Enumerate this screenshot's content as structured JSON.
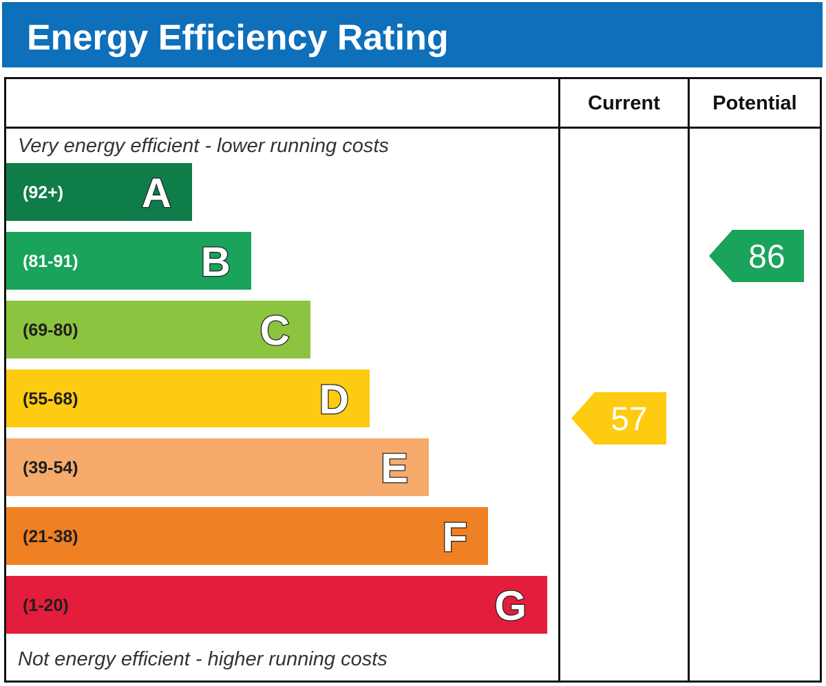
{
  "title": "Energy Efficiency Rating",
  "columns": {
    "current": "Current",
    "potential": "Potential"
  },
  "top_caption": "Very energy efficient - lower running costs",
  "bottom_caption": "Not energy efficient - higher running costs",
  "chart_data": {
    "type": "bar",
    "bands": [
      {
        "letter": "A",
        "range": "(92+)",
        "color": "#0f7d4a",
        "range_color": "#ffffff"
      },
      {
        "letter": "B",
        "range": "(81-91)",
        "color": "#1aa35a",
        "range_color": "#ffffff"
      },
      {
        "letter": "C",
        "range": "(69-80)",
        "color": "#8cc33f",
        "range_color": "#1e1e1e"
      },
      {
        "letter": "D",
        "range": "(55-68)",
        "color": "#fdcb10",
        "range_color": "#1e1e1e"
      },
      {
        "letter": "E",
        "range": "(39-54)",
        "color": "#f6ab6c",
        "range_color": "#1e1e1e"
      },
      {
        "letter": "F",
        "range": "(21-38)",
        "color": "#ef8023",
        "range_color": "#1e1e1e"
      },
      {
        "letter": "G",
        "range": "(1-20)",
        "color": "#e31d3b",
        "range_color": "#1e1e1e"
      }
    ],
    "current": {
      "value": 57,
      "band": "D",
      "color": "#fdcb10"
    },
    "potential": {
      "value": 86,
      "band": "B",
      "color": "#1aa35a"
    }
  }
}
